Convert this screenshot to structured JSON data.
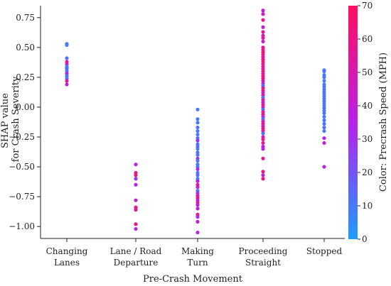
{
  "chart_data": {
    "type": "scatter",
    "title": "",
    "xlabel": "Pre-Crash Movement",
    "ylabel_lines": [
      "SHAP value",
      "for Crash Severity"
    ],
    "colorbar_label": "Color: Precrash Speed (MPH)",
    "categories": [
      [
        "Changing",
        "Lanes"
      ],
      [
        "Lane / Road",
        "Departure"
      ],
      [
        "Making",
        "Turn"
      ],
      [
        "Proceeding",
        "Straight"
      ],
      [
        "Stopped"
      ]
    ],
    "ylim": [
      -1.1,
      0.85
    ],
    "yticks": [
      {
        "value": 0.75,
        "label": "0.75"
      },
      {
        "value": 0.5,
        "label": "0.50"
      },
      {
        "value": 0.25,
        "label": "0.25"
      },
      {
        "value": 0.0,
        "label": "0.00"
      },
      {
        "value": -0.25,
        "label": "−0.25"
      },
      {
        "value": -0.5,
        "label": "−0.50"
      },
      {
        "value": -0.75,
        "label": "−0.75"
      },
      {
        "value": -1.0,
        "label": "−1.00"
      }
    ],
    "color_range": [
      0,
      70
    ],
    "colorbar_ticks": [
      "0",
      "10",
      "20",
      "30",
      "40",
      "50",
      "60",
      "70"
    ],
    "colors": {
      "low": "#1e9bff",
      "mid": "#b622e6",
      "high": "#ff1060"
    },
    "points": [
      [
        0,
        0.53,
        12
      ],
      [
        0,
        0.52,
        10
      ],
      [
        0,
        0.41,
        12
      ],
      [
        0,
        0.38,
        55
      ],
      [
        0,
        0.36,
        45
      ],
      [
        0,
        0.34,
        10
      ],
      [
        0,
        0.33,
        8
      ],
      [
        0,
        0.32,
        15
      ],
      [
        0,
        0.3,
        12
      ],
      [
        0,
        0.28,
        35
      ],
      [
        0,
        0.26,
        10
      ],
      [
        0,
        0.24,
        12
      ],
      [
        0,
        0.22,
        55
      ],
      [
        0,
        0.19,
        40
      ],
      [
        1,
        -0.48,
        35
      ],
      [
        1,
        -0.55,
        55
      ],
      [
        1,
        -0.57,
        60
      ],
      [
        1,
        -0.6,
        30
      ],
      [
        1,
        -0.65,
        35
      ],
      [
        1,
        -0.78,
        40
      ],
      [
        1,
        -0.84,
        60
      ],
      [
        1,
        -0.86,
        55
      ],
      [
        1,
        -0.98,
        60
      ],
      [
        1,
        -1.02,
        35
      ],
      [
        2,
        -0.02,
        10
      ],
      [
        2,
        -0.1,
        8
      ],
      [
        2,
        -0.13,
        10
      ],
      [
        2,
        -0.17,
        12
      ],
      [
        2,
        -0.2,
        10
      ],
      [
        2,
        -0.23,
        10
      ],
      [
        2,
        -0.26,
        12
      ],
      [
        2,
        -0.28,
        30
      ],
      [
        2,
        -0.31,
        10
      ],
      [
        2,
        -0.33,
        15
      ],
      [
        2,
        -0.35,
        10
      ],
      [
        2,
        -0.38,
        12
      ],
      [
        2,
        -0.4,
        10
      ],
      [
        2,
        -0.43,
        30
      ],
      [
        2,
        -0.45,
        12
      ],
      [
        2,
        -0.48,
        10
      ],
      [
        2,
        -0.5,
        12
      ],
      [
        2,
        -0.52,
        35
      ],
      [
        2,
        -0.55,
        10
      ],
      [
        2,
        -0.57,
        12
      ],
      [
        2,
        -0.6,
        10
      ],
      [
        2,
        -0.62,
        35
      ],
      [
        2,
        -0.65,
        55
      ],
      [
        2,
        -0.67,
        40
      ],
      [
        2,
        -0.7,
        12
      ],
      [
        2,
        -0.72,
        30
      ],
      [
        2,
        -0.74,
        45
      ],
      [
        2,
        -0.76,
        60
      ],
      [
        2,
        -0.78,
        35
      ],
      [
        2,
        -0.8,
        55
      ],
      [
        2,
        -0.82,
        35
      ],
      [
        2,
        -0.85,
        40
      ],
      [
        2,
        -0.9,
        60
      ],
      [
        2,
        -0.92,
        30
      ],
      [
        2,
        -0.96,
        40
      ],
      [
        2,
        -1.05,
        35
      ],
      [
        3,
        0.81,
        40
      ],
      [
        3,
        0.78,
        45
      ],
      [
        3,
        0.73,
        60
      ],
      [
        3,
        0.67,
        40
      ],
      [
        3,
        0.63,
        55
      ],
      [
        3,
        0.6,
        50
      ],
      [
        3,
        0.58,
        55
      ],
      [
        3,
        0.55,
        45
      ],
      [
        3,
        0.5,
        60
      ],
      [
        3,
        0.48,
        55
      ],
      [
        3,
        0.46,
        65
      ],
      [
        3,
        0.44,
        60
      ],
      [
        3,
        0.42,
        55
      ],
      [
        3,
        0.4,
        60
      ],
      [
        3,
        0.38,
        65
      ],
      [
        3,
        0.36,
        55
      ],
      [
        3,
        0.34,
        60
      ],
      [
        3,
        0.32,
        50
      ],
      [
        3,
        0.3,
        60
      ],
      [
        3,
        0.28,
        55
      ],
      [
        3,
        0.26,
        65
      ],
      [
        3,
        0.24,
        60
      ],
      [
        3,
        0.22,
        50
      ],
      [
        3,
        0.2,
        40
      ],
      [
        3,
        0.18,
        12
      ],
      [
        3,
        0.16,
        55
      ],
      [
        3,
        0.14,
        60
      ],
      [
        3,
        0.12,
        45
      ],
      [
        3,
        0.1,
        50
      ],
      [
        3,
        0.08,
        12
      ],
      [
        3,
        0.06,
        55
      ],
      [
        3,
        0.04,
        40
      ],
      [
        3,
        0.02,
        60
      ],
      [
        3,
        0.0,
        45
      ],
      [
        3,
        -0.02,
        12
      ],
      [
        3,
        -0.04,
        55
      ],
      [
        3,
        -0.06,
        60
      ],
      [
        3,
        -0.08,
        35
      ],
      [
        3,
        -0.1,
        12
      ],
      [
        3,
        -0.12,
        50
      ],
      [
        3,
        -0.14,
        55
      ],
      [
        3,
        -0.16,
        45
      ],
      [
        3,
        -0.18,
        60
      ],
      [
        3,
        -0.2,
        55
      ],
      [
        3,
        -0.22,
        12
      ],
      [
        3,
        -0.25,
        45
      ],
      [
        3,
        -0.27,
        60
      ],
      [
        3,
        -0.3,
        55
      ],
      [
        3,
        -0.33,
        40
      ],
      [
        3,
        -0.35,
        35
      ],
      [
        3,
        -0.43,
        55
      ],
      [
        3,
        -0.54,
        60
      ],
      [
        3,
        -0.57,
        40
      ],
      [
        3,
        -0.6,
        60
      ],
      [
        4,
        0.31,
        10
      ],
      [
        4,
        0.3,
        12
      ],
      [
        4,
        0.27,
        10
      ],
      [
        4,
        0.25,
        12
      ],
      [
        4,
        0.22,
        10
      ],
      [
        4,
        0.19,
        12
      ],
      [
        4,
        0.17,
        10
      ],
      [
        4,
        0.15,
        12
      ],
      [
        4,
        0.13,
        10
      ],
      [
        4,
        0.11,
        12
      ],
      [
        4,
        0.09,
        10
      ],
      [
        4,
        0.07,
        12
      ],
      [
        4,
        0.05,
        10
      ],
      [
        4,
        0.03,
        12
      ],
      [
        4,
        0.01,
        10
      ],
      [
        4,
        -0.01,
        12
      ],
      [
        4,
        -0.03,
        10
      ],
      [
        4,
        -0.05,
        12
      ],
      [
        4,
        -0.08,
        10
      ],
      [
        4,
        -0.11,
        12
      ],
      [
        4,
        -0.14,
        10
      ],
      [
        4,
        -0.17,
        12
      ],
      [
        4,
        -0.2,
        10
      ],
      [
        4,
        -0.26,
        35
      ],
      [
        4,
        -0.3,
        40
      ],
      [
        4,
        -0.5,
        40
      ]
    ]
  }
}
